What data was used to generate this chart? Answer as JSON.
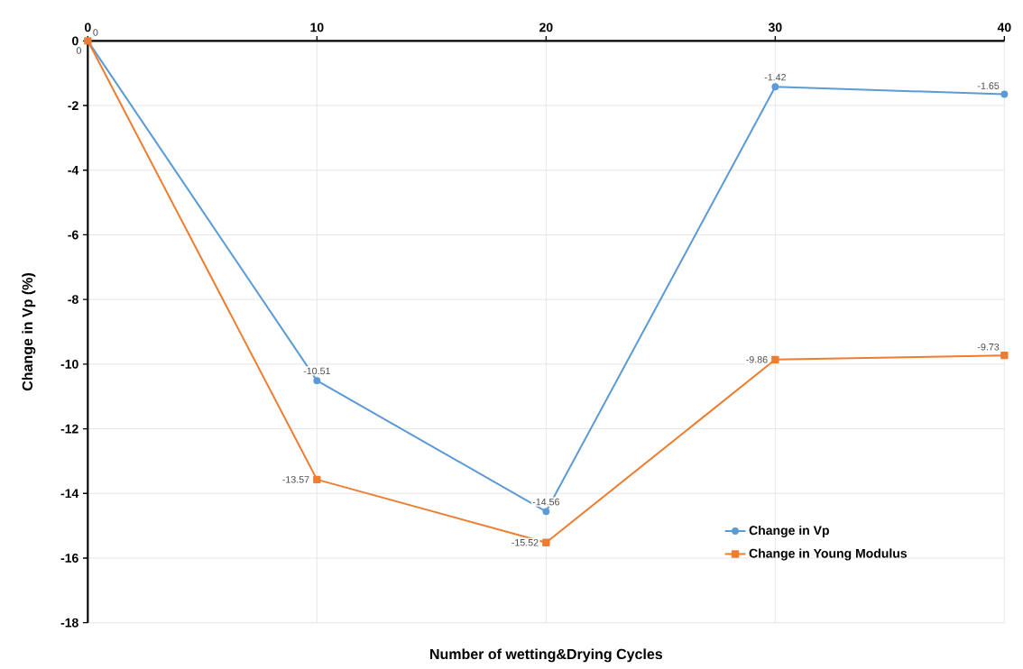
{
  "chart_data": {
    "type": "line",
    "xlabel": "Number of wetting&Drying Cycles",
    "ylabel": "Change in Vp  (%)",
    "x": [
      0,
      10,
      20,
      30,
      40
    ],
    "series": [
      {
        "name": "Change in Vp",
        "color": "#5b9bd5",
        "marker": "circle",
        "values": [
          0,
          -10.51,
          -14.56,
          -1.42,
          -1.65
        ]
      },
      {
        "name": "Change in Young Modulus",
        "color": "#ed7d31",
        "marker": "square",
        "values": [
          0,
          -13.57,
          -15.52,
          -9.86,
          -9.73
        ]
      }
    ],
    "xlim": [
      0,
      40
    ],
    "xticks": [
      0,
      10,
      20,
      30,
      40
    ],
    "ylim": [
      -18,
      0
    ],
    "yticks": [
      -18,
      -16,
      -14,
      -12,
      -10,
      -8,
      -6,
      -4,
      -2,
      0
    ],
    "grid": true,
    "legend": "bottom right",
    "data_labels": true,
    "line_style": "solid"
  }
}
